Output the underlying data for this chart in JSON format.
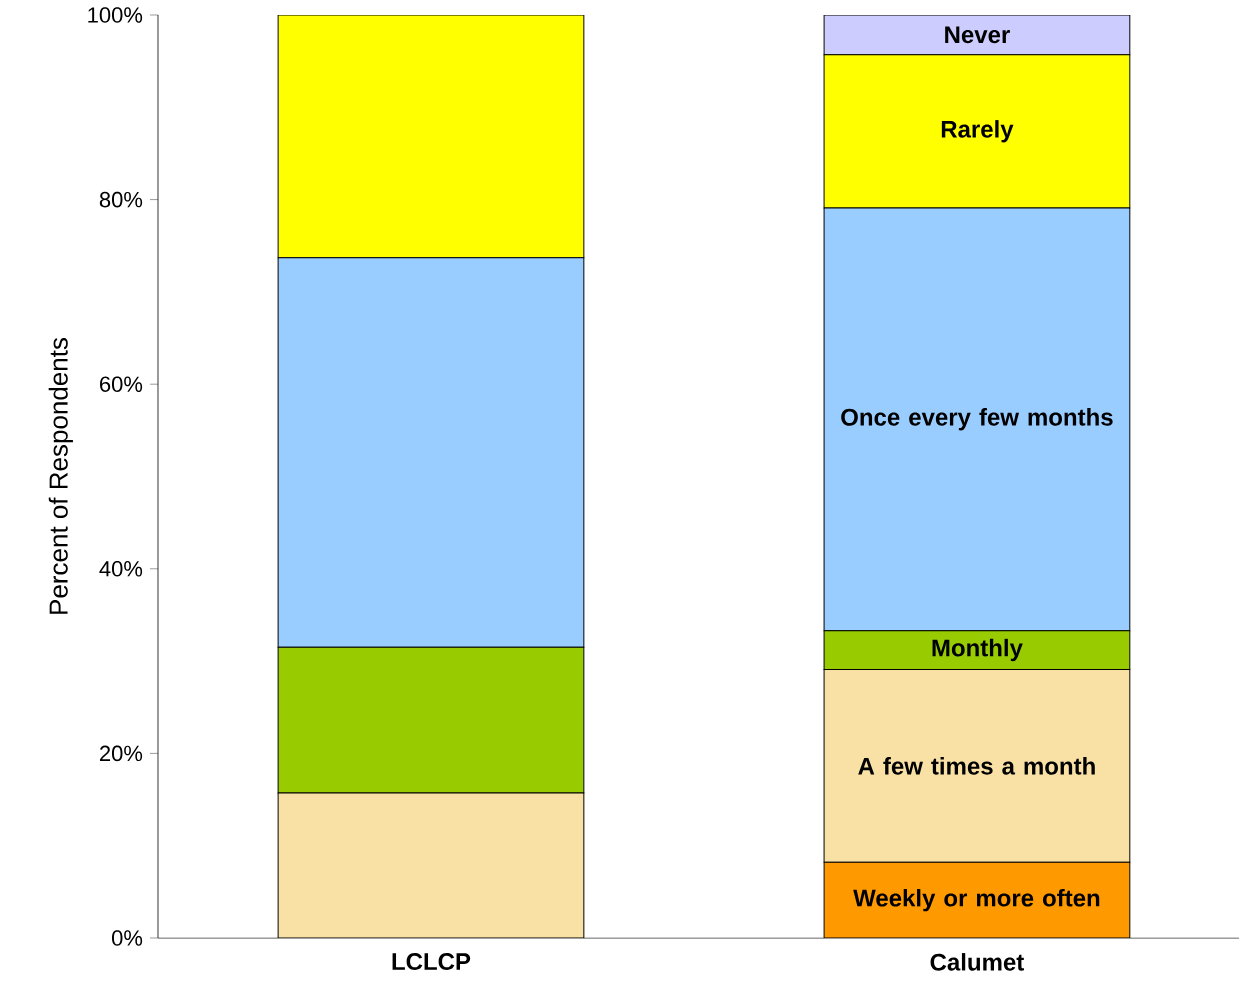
{
  "chart_data": {
    "type": "bar",
    "stacked": true,
    "ylabel": "Percent of Respondents",
    "categories": [
      "LCLCP",
      "Calumet"
    ],
    "ylim": [
      0,
      100
    ],
    "yticks": [
      {
        "value": 0,
        "label": "0%"
      },
      {
        "value": 20,
        "label": "20%"
      },
      {
        "value": 40,
        "label": "40%"
      },
      {
        "value": 60,
        "label": "60%"
      },
      {
        "value": 80,
        "label": "80%"
      },
      {
        "value": 100,
        "label": "100%"
      }
    ],
    "series": [
      {
        "name": "Weekly or more often",
        "color": "#ff9900",
        "values": [
          0,
          8.2
        ]
      },
      {
        "name": "A few times a month",
        "color": "#f9e1a5",
        "values": [
          15.7,
          20.9
        ]
      },
      {
        "name": "Monthly",
        "color": "#99cc00",
        "values": [
          15.8,
          4.2
        ]
      },
      {
        "name": "Once every few months",
        "color": "#99ccff",
        "values": [
          42.2,
          45.8
        ]
      },
      {
        "name": "Rarely",
        "color": "#ffff00",
        "values": [
          26.3,
          16.6
        ]
      },
      {
        "name": "Never",
        "color": "#ccccff",
        "values": [
          0,
          4.3
        ]
      }
    ]
  }
}
